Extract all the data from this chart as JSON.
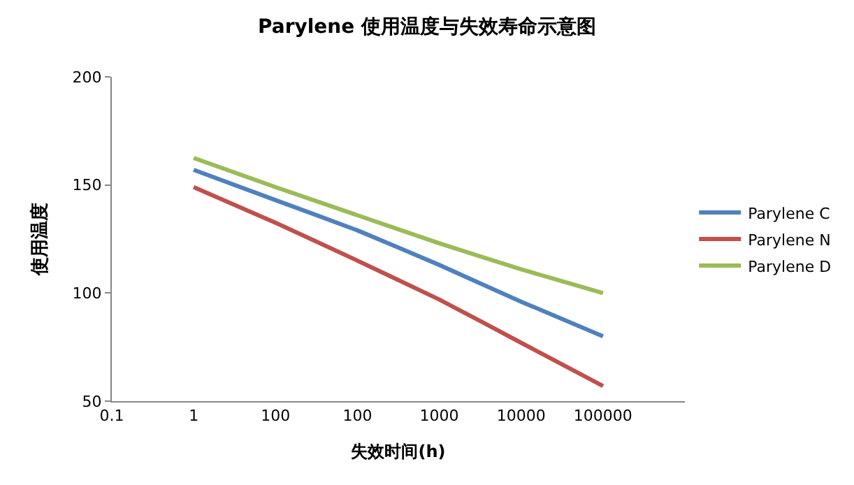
{
  "chart_data": {
    "type": "line",
    "title": "Parylene 使用温度与失效寿命示意图",
    "xlabel": "失效时间(h)",
    "ylabel": "使用温度",
    "categories": [
      "0.1",
      "1",
      "100",
      "100",
      "1000",
      "10000",
      "100000",
      null
    ],
    "series": [
      {
        "name": "Parylene C",
        "color": "#4f81bd",
        "values": [
          null,
          157,
          143,
          129,
          113,
          96,
          80,
          null
        ]
      },
      {
        "name": "Parylene N",
        "color": "#c0504d",
        "values": [
          null,
          149,
          132.5,
          115,
          97,
          77,
          57,
          null
        ]
      },
      {
        "name": "Parylene D",
        "color": "#9bbb59",
        "values": [
          null,
          162.5,
          149,
          136,
          123,
          111,
          100,
          null
        ]
      }
    ],
    "ylim": [
      50,
      200
    ],
    "yticks": [
      50,
      100,
      150,
      200
    ],
    "legend": "right",
    "marker": "none",
    "line_style": "solid"
  }
}
